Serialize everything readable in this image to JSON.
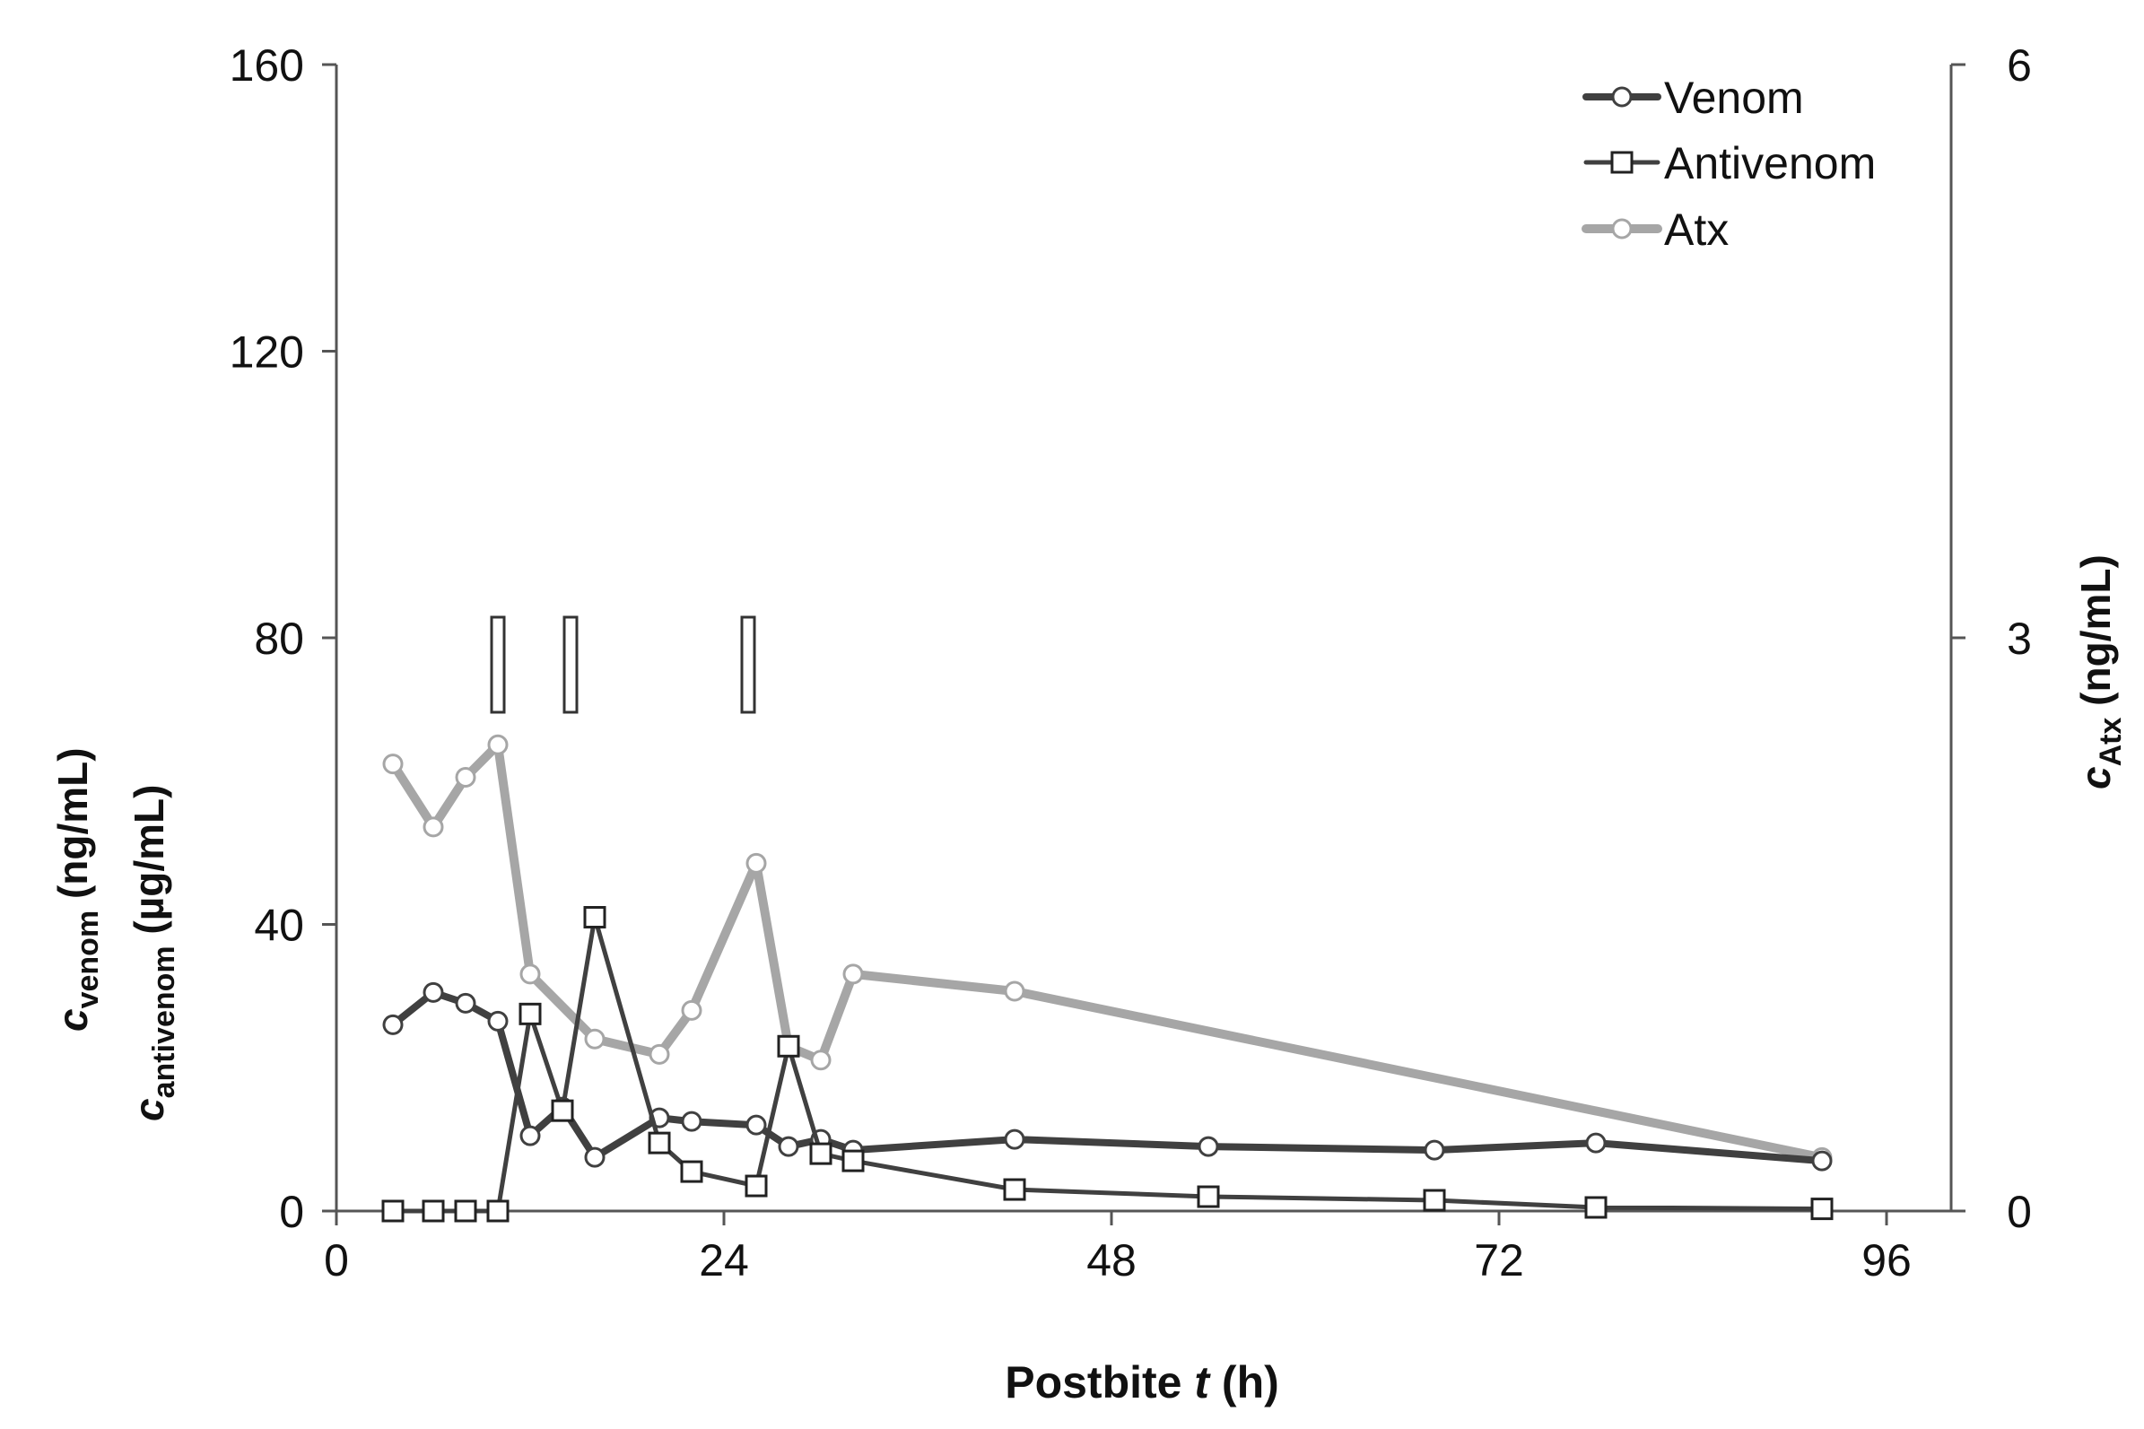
{
  "chart_data": {
    "type": "line",
    "xlabel": {
      "prefix": "Postbite ",
      "italic": "t",
      "suffix": " (h)"
    },
    "ylabel_left": [
      {
        "italic": "c",
        "sub": "venom",
        "suffix": " (ng/mL)"
      },
      {
        "italic": "c",
        "sub": "antivenom",
        "suffix": " (µg/mL)"
      }
    ],
    "ylabel_right": {
      "italic": "c",
      "sub": "Atx",
      "suffix": " (ng/mL)"
    },
    "xlim": [
      0,
      96
    ],
    "xticks": [
      "0",
      "24",
      "48",
      "72",
      "96"
    ],
    "ylim_left": [
      0,
      160
    ],
    "yticks_left": [
      "0",
      "40",
      "80",
      "120",
      "160"
    ],
    "ylim_right": [
      0,
      6
    ],
    "yticks_right": [
      "0",
      "3",
      "6"
    ],
    "grid": false,
    "legend": {
      "position": "top-right",
      "entries": [
        {
          "key": "venom",
          "label": "Venom"
        },
        {
          "key": "antivenom",
          "label": "Antivenom"
        },
        {
          "key": "atx",
          "label": "Atx"
        }
      ]
    },
    "series": [
      {
        "key": "venom",
        "name": "Venom",
        "axis": "left",
        "color": "#404040",
        "marker": "circle",
        "points": [
          [
            3.5,
            26
          ],
          [
            6,
            30.5
          ],
          [
            8,
            29
          ],
          [
            10,
            26.5
          ],
          [
            12,
            10.5
          ],
          [
            14,
            14.5
          ],
          [
            16,
            7.5
          ],
          [
            20,
            13
          ],
          [
            22,
            12.5
          ],
          [
            26,
            12
          ],
          [
            28,
            9
          ],
          [
            30,
            10
          ],
          [
            32,
            8.5
          ],
          [
            42,
            10
          ],
          [
            54,
            9
          ],
          [
            68,
            8.5
          ],
          [
            78,
            9.5
          ],
          [
            92,
            7
          ]
        ]
      },
      {
        "key": "antivenom",
        "name": "Antivenom",
        "axis": "left",
        "color": "#404040",
        "marker": "square",
        "points": [
          [
            3.5,
            0
          ],
          [
            6,
            0
          ],
          [
            8,
            0
          ],
          [
            10,
            0
          ],
          [
            12,
            27.5
          ],
          [
            14,
            14
          ],
          [
            16,
            41
          ],
          [
            20,
            9.5
          ],
          [
            22,
            5.5
          ],
          [
            26,
            3.5
          ],
          [
            28,
            23
          ],
          [
            30,
            8
          ],
          [
            32,
            7
          ],
          [
            42,
            3
          ],
          [
            54,
            2
          ],
          [
            68,
            1.5
          ],
          [
            78,
            0.5
          ],
          [
            92,
            0.3
          ]
        ]
      },
      {
        "key": "atx",
        "name": "Atx",
        "axis": "right",
        "color": "#a6a6a6",
        "marker": "circle",
        "points": [
          [
            3.5,
            2.34
          ],
          [
            6,
            2.01
          ],
          [
            8,
            2.27
          ],
          [
            10,
            2.44
          ],
          [
            12,
            1.24
          ],
          [
            16,
            0.9
          ],
          [
            20,
            0.82
          ],
          [
            22,
            1.05
          ],
          [
            26,
            1.82
          ],
          [
            28,
            0.86
          ],
          [
            30,
            0.79
          ],
          [
            32,
            1.24
          ],
          [
            42,
            1.15
          ],
          [
            92,
            0.28
          ]
        ]
      }
    ],
    "antivenom_doses_h": [
      10,
      14.5,
      25.5
    ]
  }
}
